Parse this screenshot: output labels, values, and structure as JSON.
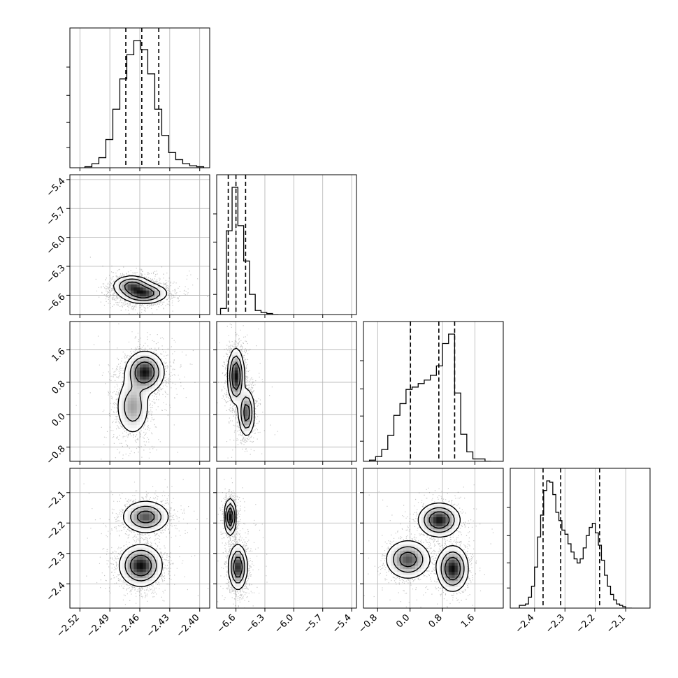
{
  "chart_data": {
    "type": "corner",
    "parameters": [
      "",
      "",
      "",
      ""
    ],
    "axis_ranges": [
      [
        -2.53,
        -2.39
      ],
      [
        -6.8,
        -5.35
      ],
      [
        -1.15,
        2.3
      ],
      [
        -2.48,
        -2.02
      ]
    ],
    "ticks": [
      {
        "values": [
          -2.52,
          -2.49,
          -2.46,
          -2.43,
          -2.4
        ],
        "labels": [
          "−2.52",
          "−2.49",
          "−2.46",
          "−2.43",
          "−2.40"
        ]
      },
      {
        "values": [
          -6.6,
          -6.3,
          -6.0,
          -5.7,
          -5.4
        ],
        "labels": [
          "−6.6",
          "−6.3",
          "−6.0",
          "−5.7",
          "−5.4"
        ]
      },
      {
        "values": [
          -0.8,
          0.0,
          0.8,
          1.6
        ],
        "labels": [
          "−0.8",
          "0.0",
          "0.8",
          "1.6"
        ]
      },
      {
        "values": [
          -2.4,
          -2.3,
          -2.2,
          -2.1
        ],
        "labels": [
          "−2.4",
          "−2.3",
          "−2.2",
          "−2.1"
        ]
      }
    ],
    "grid": true,
    "quantiles": [
      [
        -2.474,
        -2.458,
        -2.441
      ],
      [
        -6.68,
        -6.6,
        -6.5
      ],
      [
        0.01,
        0.71,
        1.1
      ],
      [
        -2.372,
        -2.314,
        -2.186
      ]
    ],
    "histograms": [
      {
        "edges": [
          -2.515,
          -2.508,
          -2.501,
          -2.494,
          -2.487,
          -2.48,
          -2.473,
          -2.466,
          -2.459,
          -2.452,
          -2.445,
          -2.438,
          -2.431,
          -2.424,
          -2.417,
          -2.41,
          -2.403,
          -2.396
        ],
        "counts": [
          1,
          4,
          10,
          28,
          58,
          88,
          112,
          126,
          117,
          93,
          58,
          32,
          15,
          8,
          4,
          2,
          1
        ]
      },
      {
        "edges": [
          -6.76,
          -6.7,
          -6.64,
          -6.58,
          -6.52,
          -6.46,
          -6.4,
          -6.34,
          -6.28,
          -6.22,
          -6.16
        ],
        "counts": [
          6,
          83,
          126,
          88,
          53,
          20,
          4,
          2,
          1,
          0
        ]
      },
      {
        "edges": [
          -1.0,
          -0.85,
          -0.7,
          -0.55,
          -0.4,
          -0.25,
          -0.1,
          0.05,
          0.2,
          0.35,
          0.5,
          0.65,
          0.8,
          0.95,
          1.1,
          1.25,
          1.4,
          1.55,
          1.7,
          1.85,
          2.0
        ],
        "counts": [
          1,
          4,
          10,
          22,
          39,
          49,
          61,
          63,
          66,
          69,
          73,
          81,
          100,
          108,
          58,
          23,
          8,
          2,
          2,
          0
        ]
      },
      {
        "edges": [
          -2.45,
          -2.44,
          -2.43,
          -2.42,
          -2.41,
          -2.4,
          -2.39,
          -2.38,
          -2.37,
          -2.36,
          -2.35,
          -2.34,
          -2.33,
          -2.32,
          -2.31,
          -2.3,
          -2.29,
          -2.28,
          -2.27,
          -2.26,
          -2.25,
          -2.24,
          -2.23,
          -2.22,
          -2.21,
          -2.2,
          -2.19,
          -2.18,
          -2.17,
          -2.16,
          -2.15,
          -2.14,
          -2.13,
          -2.12,
          -2.11,
          -2.1,
          -2.09,
          -2.08
        ],
        "counts": [
          2,
          2,
          3,
          8,
          16,
          30,
          52,
          68,
          86,
          93,
          92,
          83,
          70,
          64,
          57,
          54,
          47,
          41,
          36,
          33,
          36,
          44,
          53,
          59,
          62,
          55,
          46,
          35,
          24,
          16,
          10,
          6,
          3,
          2,
          1,
          0,
          0
        ]
      }
    ],
    "pair_distributions": [
      {
        "x": 0,
        "y": 1,
        "modes": [
          {
            "cx": -2.456,
            "cy": -6.58,
            "sx": 0.011,
            "sy": 0.05,
            "w": 0.6
          },
          {
            "cx": -2.468,
            "cy": -6.5,
            "sx": 0.009,
            "sy": 0.05,
            "w": 0.4
          }
        ]
      },
      {
        "x": 0,
        "y": 2,
        "modes": [
          {
            "cx": -2.455,
            "cy": 1.05,
            "sx": 0.009,
            "sy": 0.24,
            "w": 0.6
          },
          {
            "cx": -2.467,
            "cy": 0.2,
            "sx": 0.008,
            "sy": 0.34,
            "w": 0.4
          }
        ]
      },
      {
        "x": 0,
        "y": 3,
        "modes": [
          {
            "cx": -2.459,
            "cy": -2.34,
            "sx": 0.01,
            "sy": 0.032,
            "w": 0.6
          },
          {
            "cx": -2.454,
            "cy": -2.18,
            "sx": 0.011,
            "sy": 0.025,
            "w": 0.4
          }
        ]
      },
      {
        "x": 1,
        "y": 2,
        "modes": [
          {
            "cx": -6.6,
            "cy": 0.95,
            "sx": 0.04,
            "sy": 0.32,
            "w": 0.6
          },
          {
            "cx": -6.49,
            "cy": 0.05,
            "sx": 0.04,
            "sy": 0.28,
            "w": 0.4
          }
        ]
      },
      {
        "x": 1,
        "y": 3,
        "modes": [
          {
            "cx": -6.66,
            "cy": -2.18,
            "sx": 0.028,
            "sy": 0.028,
            "w": 0.35
          },
          {
            "cx": -6.58,
            "cy": -2.345,
            "sx": 0.045,
            "sy": 0.035,
            "w": 0.65
          }
        ]
      },
      {
        "x": 2,
        "y": 3,
        "modes": [
          {
            "cx": 0.72,
            "cy": -2.19,
            "sx": 0.24,
            "sy": 0.026,
            "w": 0.33
          },
          {
            "cx": -0.05,
            "cy": -2.32,
            "sx": 0.26,
            "sy": 0.03,
            "w": 0.33
          },
          {
            "cx": 1.05,
            "cy": -2.35,
            "sx": 0.18,
            "sy": 0.035,
            "w": 0.34
          }
        ]
      }
    ]
  }
}
